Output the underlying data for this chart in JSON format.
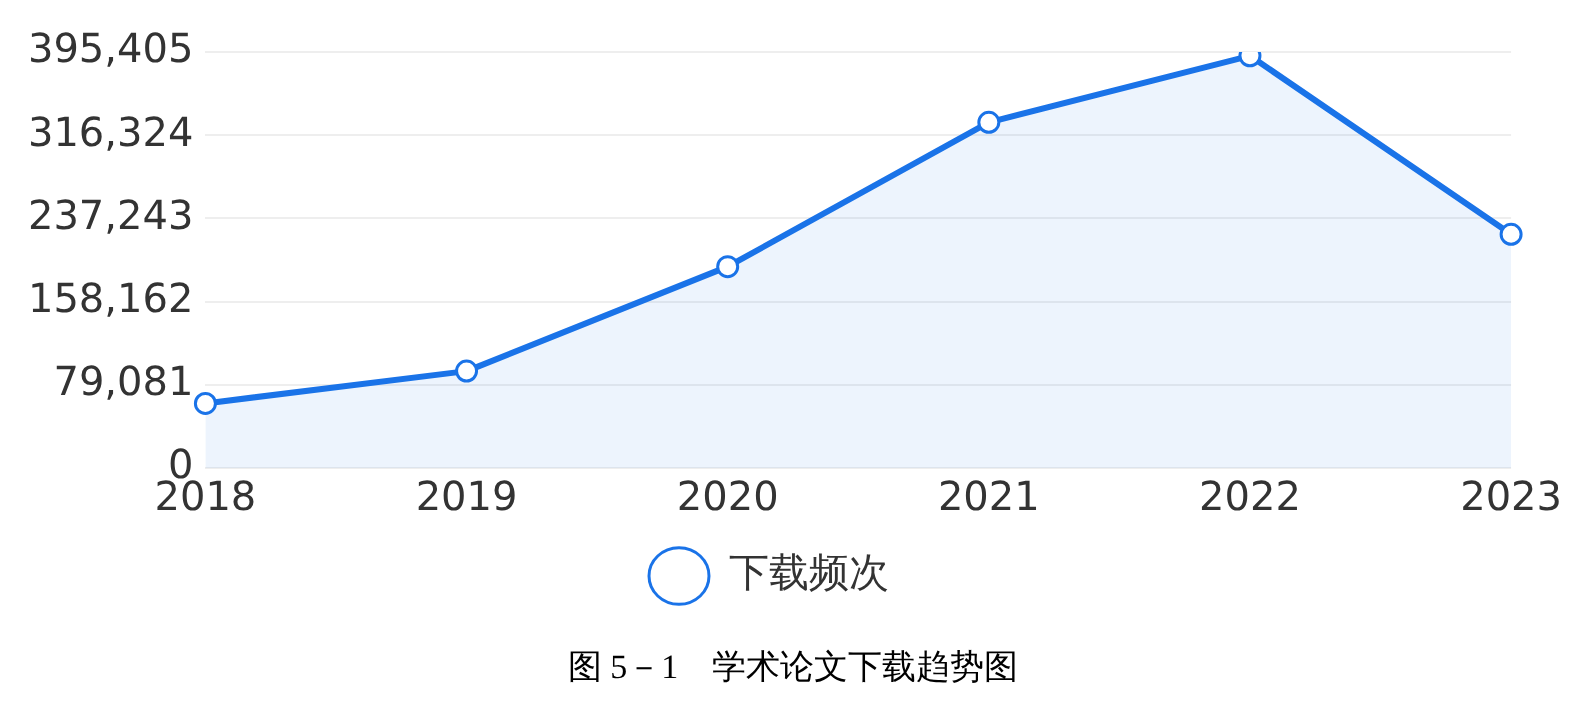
{
  "chart_data": {
    "type": "area",
    "categories": [
      "2018",
      "2019",
      "2020",
      "2021",
      "2022",
      "2023"
    ],
    "series": [
      {
        "name": "下载频次",
        "color": "#1a73e8",
        "values": [
          61400,
          92100,
          191400,
          328600,
          391800,
          222100
        ]
      }
    ],
    "ylim": [
      0,
      395405
    ],
    "yticks": [
      0,
      {
        "value": 79081,
        "label": "79,081"
      },
      {
        "value": 158162,
        "label": "158,162"
      },
      {
        "value": 237243,
        "label": "237,243"
      },
      {
        "value": 316324,
        "label": "316,324"
      },
      {
        "value": 395405,
        "label": "395,405"
      }
    ],
    "grid": "y",
    "legend": "bottom",
    "marker": "circle",
    "line_style": "solid",
    "annotations": [
      "图 5－1　学术论文下载趋势图"
    ]
  }
}
